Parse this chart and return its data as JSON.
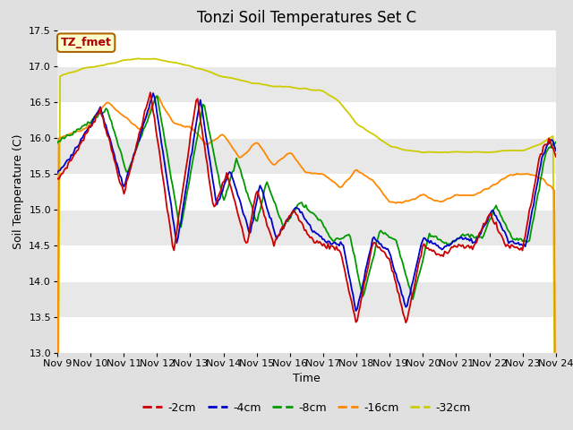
{
  "title": "Tonzi Soil Temperatures Set C",
  "xlabel": "Time",
  "ylabel": "Soil Temperature (C)",
  "ylim": [
    13.0,
    17.5
  ],
  "annotation_text": "TZ_fmet",
  "annotation_color": "#aa0000",
  "annotation_bg": "#ffffcc",
  "annotation_border": "#aa6600",
  "series_colors": {
    "-2cm": "#cc0000",
    "-4cm": "#0000cc",
    "-8cm": "#009900",
    "-16cm": "#ff8800",
    "-32cm": "#cccc00"
  },
  "background_color": "#e0e0e0",
  "band_color": "#e8e8e8",
  "grid_color": "#ffffff",
  "title_fontsize": 12,
  "axis_fontsize": 9,
  "tick_fontsize": 8,
  "legend_fontsize": 9,
  "line_width": 1.3,
  "x_start_day": 9,
  "x_end_day": 24,
  "x_ticks": [
    9,
    10,
    11,
    12,
    13,
    14,
    15,
    16,
    17,
    18,
    19,
    20,
    21,
    22,
    23,
    24
  ]
}
